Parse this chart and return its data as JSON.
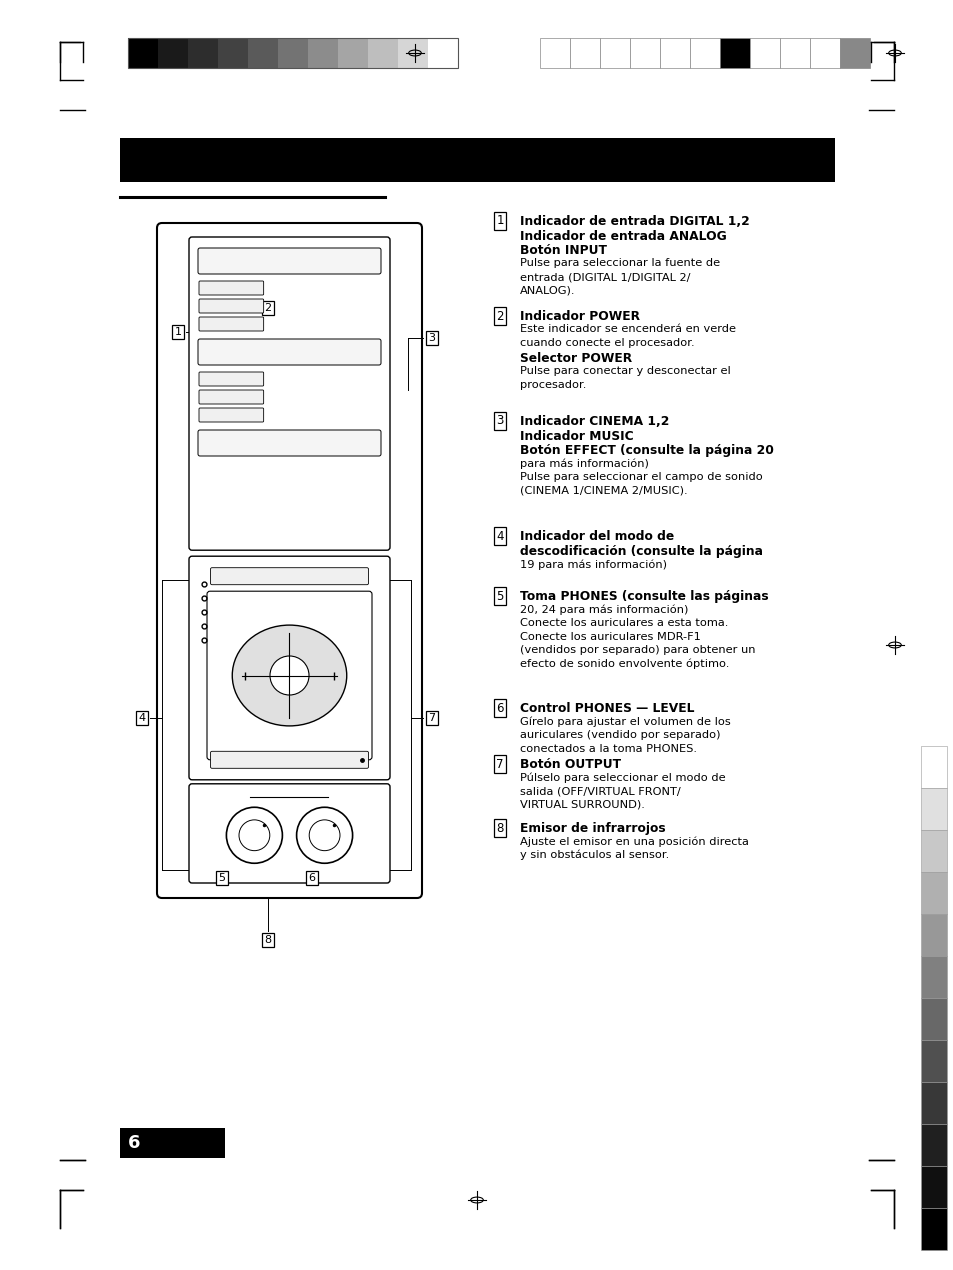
{
  "page_bg": "#ffffff",
  "items": [
    {
      "num": "1",
      "lines": [
        {
          "text": "Indicador de entrada DIGITAL 1,2",
          "bold": true
        },
        {
          "text": "Indicador de entrada ANALOG",
          "bold": true
        },
        {
          "text": "Botón INPUT",
          "bold": true
        },
        {
          "text": "Pulse para seleccionar la fuente de",
          "bold": false
        },
        {
          "text": "entrada (DIGITAL 1/DIGITAL 2/",
          "bold": false
        },
        {
          "text": "ANALOG).",
          "bold": false
        }
      ]
    },
    {
      "num": "2",
      "lines": [
        {
          "text": "Indicador POWER",
          "bold": true
        },
        {
          "text": "Este indicador se encenderá en verde",
          "bold": false
        },
        {
          "text": "cuando conecte el procesador.",
          "bold": false
        },
        {
          "text": "Selector POWER",
          "bold": true
        },
        {
          "text": "Pulse para conectar y desconectar el",
          "bold": false
        },
        {
          "text": "procesador.",
          "bold": false
        }
      ]
    },
    {
      "num": "3",
      "lines": [
        {
          "text": "Indicador CINEMA 1,2",
          "bold": true
        },
        {
          "text": "Indicador MUSIC",
          "bold": true
        },
        {
          "text": "Botón EFFECT (consulte la página 20",
          "bold": true
        },
        {
          "text": "para más información)",
          "bold": false
        },
        {
          "text": "Pulse para seleccionar el campo de sonido",
          "bold": false
        },
        {
          "text": "(CINEMA 1/CINEMA 2/MUSIC).",
          "bold": false
        }
      ]
    },
    {
      "num": "4",
      "lines": [
        {
          "text": "Indicador del modo de",
          "bold": true
        },
        {
          "text": "descodificación (consulte la página",
          "bold": true
        },
        {
          "text": "19 para más información)",
          "bold": false
        }
      ]
    },
    {
      "num": "5",
      "lines": [
        {
          "text": "Toma PHONES (consulte las páginas",
          "bold": true
        },
        {
          "text": "20, 24 para más información)",
          "bold": false
        },
        {
          "text": "Conecte los auriculares a esta toma.",
          "bold": false
        },
        {
          "text": "Conecte los auriculares MDR-F1",
          "bold": false
        },
        {
          "text": "(vendidos por separado) para obtener un",
          "bold": false
        },
        {
          "text": "efecto de sonido envolvente óptimo.",
          "bold": false
        }
      ]
    },
    {
      "num": "6",
      "lines": [
        {
          "text": "Control PHONES — LEVEL",
          "bold": true
        },
        {
          "text": "Gírelo para ajustar el volumen de los",
          "bold": false
        },
        {
          "text": "auriculares (vendido por separado)",
          "bold": false
        },
        {
          "text": "conectados a la toma PHONES.",
          "bold": false
        }
      ]
    },
    {
      "num": "7",
      "lines": [
        {
          "text": "Botón OUTPUT",
          "bold": true
        },
        {
          "text": "Púlselo para seleccionar el modo de",
          "bold": false
        },
        {
          "text": "salida (OFF/VIRTUAL FRONT/",
          "bold": false
        },
        {
          "text": "VIRTUAL SURROUND).",
          "bold": false
        }
      ]
    },
    {
      "num": "8",
      "lines": [
        {
          "text": "Emisor de infrarrojos",
          "bold": true
        },
        {
          "text": "Ajuste el emisor en una posición directa",
          "bold": false
        },
        {
          "text": "y sin obstáculos al sensor.",
          "bold": false
        }
      ]
    }
  ],
  "left_bar_colors": [
    "#000000",
    "#1a1a1a",
    "#2d2d2d",
    "#424242",
    "#5a5a5a",
    "#737373",
    "#8c8c8c",
    "#a5a5a5",
    "#bebebe",
    "#d6d6d6",
    "#ffffff"
  ],
  "right_bar_colors": [
    "#ffffff",
    "#ffffff",
    "#ffffff",
    "#ffffff",
    "#ffffff",
    "#ffffff",
    "#000000",
    "#ffffff",
    "#ffffff",
    "#ffffff",
    "#888888"
  ],
  "right_strip_colors": [
    "#ffffff",
    "#e0e0e0",
    "#c8c8c8",
    "#b0b0b0",
    "#989898",
    "#808080",
    "#686868",
    "#505050",
    "#383838",
    "#202020",
    "#101010",
    "#000000"
  ]
}
